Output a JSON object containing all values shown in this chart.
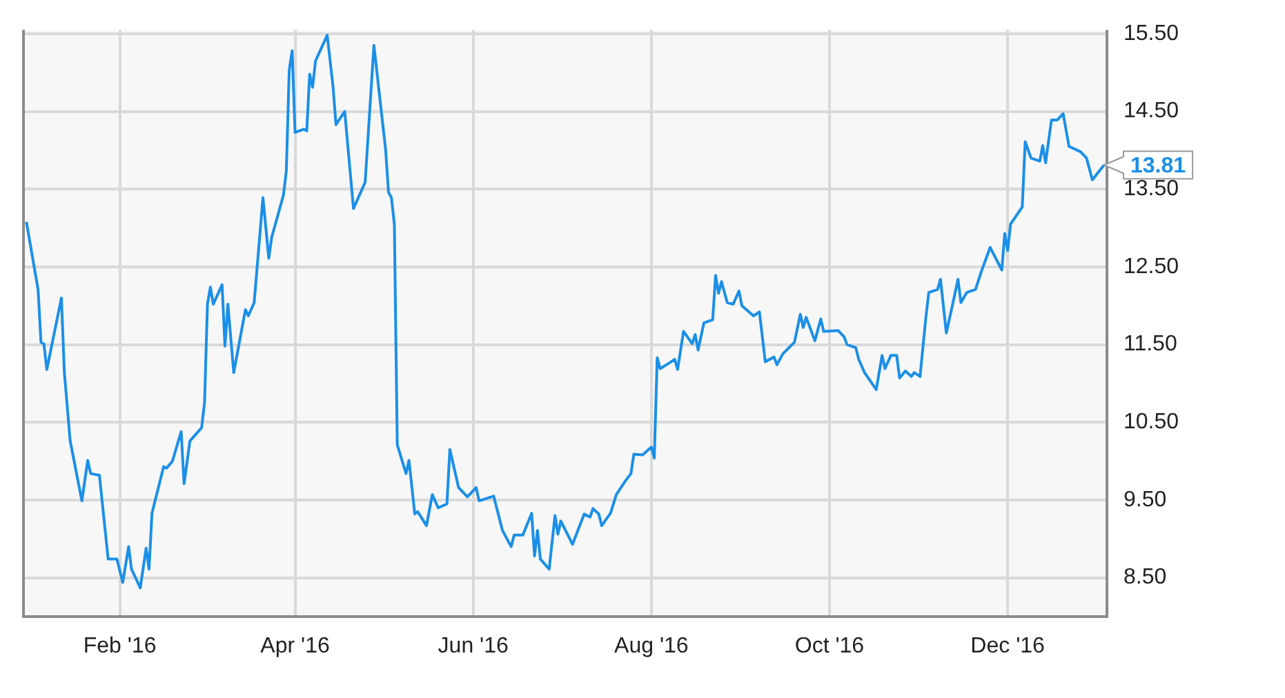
{
  "chart_data": {
    "type": "line",
    "x": [
      "2015-12-31",
      "2016-01-04",
      "2016-01-05",
      "2016-01-06",
      "2016-01-07",
      "2016-01-12",
      "2016-01-13",
      "2016-01-15",
      "2016-01-19",
      "2016-01-21",
      "2016-01-22",
      "2016-01-25",
      "2016-01-28",
      "2016-01-31",
      "2016-02-02",
      "2016-02-04",
      "2016-02-05",
      "2016-02-08",
      "2016-02-10",
      "2016-02-11",
      "2016-02-12",
      "2016-02-16",
      "2016-02-17",
      "2016-02-19",
      "2016-02-22",
      "2016-02-23",
      "2016-02-25",
      "2016-02-29",
      "2016-03-01",
      "2016-03-02",
      "2016-03-03",
      "2016-03-04",
      "2016-03-07",
      "2016-03-08",
      "2016-03-09",
      "2016-03-11",
      "2016-03-15",
      "2016-03-16",
      "2016-03-18",
      "2016-03-21",
      "2016-03-23",
      "2016-03-24",
      "2016-03-28",
      "2016-03-29",
      "2016-03-30",
      "2016-03-31",
      "2016-04-01",
      "2016-04-04",
      "2016-04-05",
      "2016-04-06",
      "2016-04-07",
      "2016-04-08",
      "2016-04-12",
      "2016-04-14",
      "2016-04-15",
      "2016-04-18",
      "2016-04-21",
      "2016-04-25",
      "2016-04-28",
      "2016-05-02",
      "2016-05-03",
      "2016-05-04",
      "2016-05-05",
      "2016-05-06",
      "2016-05-09",
      "2016-05-10",
      "2016-05-12",
      "2016-05-13",
      "2016-05-16",
      "2016-05-18",
      "2016-05-20",
      "2016-05-23",
      "2016-05-24",
      "2016-05-27",
      "2016-05-30",
      "2016-06-02",
      "2016-06-03",
      "2016-06-08",
      "2016-06-11",
      "2016-06-14",
      "2016-06-15",
      "2016-06-18",
      "2016-06-21",
      "2016-06-22",
      "2016-06-23",
      "2016-06-24",
      "2016-06-27",
      "2016-06-29",
      "2016-06-30",
      "2016-07-01",
      "2016-07-05",
      "2016-07-09",
      "2016-07-11",
      "2016-07-12",
      "2016-07-14",
      "2016-07-15",
      "2016-07-18",
      "2016-07-20",
      "2016-07-23",
      "2016-07-25",
      "2016-07-26",
      "2016-07-29",
      "2016-08-01",
      "2016-08-02",
      "2016-08-03",
      "2016-08-04",
      "2016-08-07",
      "2016-08-09",
      "2016-08-10",
      "2016-08-12",
      "2016-08-15",
      "2016-08-16",
      "2016-08-17",
      "2016-08-19",
      "2016-08-22",
      "2016-08-23",
      "2016-08-24",
      "2016-08-25",
      "2016-08-27",
      "2016-08-29",
      "2016-08-31",
      "2016-09-01",
      "2016-09-05",
      "2016-09-07",
      "2016-09-09",
      "2016-09-12",
      "2016-09-13",
      "2016-09-15",
      "2016-09-19",
      "2016-09-21",
      "2016-09-22",
      "2016-09-23",
      "2016-09-26",
      "2016-09-28",
      "2016-09-29",
      "2016-10-04",
      "2016-10-06",
      "2016-10-07",
      "2016-10-10",
      "2016-10-11",
      "2016-10-13",
      "2016-10-17",
      "2016-10-19",
      "2016-10-20",
      "2016-10-22",
      "2016-10-24",
      "2016-10-25",
      "2016-10-27",
      "2016-10-29",
      "2016-10-30",
      "2016-11-01",
      "2016-11-03",
      "2016-11-04",
      "2016-11-07",
      "2016-11-08",
      "2016-11-10",
      "2016-11-12",
      "2016-11-14",
      "2016-11-15",
      "2016-11-17",
      "2016-11-20",
      "2016-11-22",
      "2016-11-25",
      "2016-11-29",
      "2016-11-30",
      "2016-12-01",
      "2016-12-02",
      "2016-12-06",
      "2016-12-07",
      "2016-12-09",
      "2016-12-12",
      "2016-12-13",
      "2016-12-14",
      "2016-12-16",
      "2016-12-18",
      "2016-12-20",
      "2016-12-22",
      "2016-12-26",
      "2016-12-28",
      "2016-12-30",
      "2017-01-03"
    ],
    "series": [
      {
        "color": "#1a8fe8",
        "values": [
          13.08,
          12.21,
          11.53,
          11.51,
          11.18,
          12.1,
          11.14,
          10.26,
          9.49,
          10.01,
          9.84,
          9.82,
          8.74,
          8.74,
          8.44,
          8.9,
          8.61,
          8.37,
          8.88,
          8.61,
          9.33,
          9.93,
          9.91,
          10.0,
          10.38,
          9.71,
          10.26,
          10.43,
          10.75,
          12.02,
          12.24,
          12.02,
          12.27,
          11.48,
          12.02,
          11.14,
          11.95,
          11.87,
          12.04,
          13.39,
          12.61,
          12.88,
          13.42,
          13.73,
          15.03,
          15.28,
          14.23,
          14.27,
          14.25,
          14.98,
          14.81,
          15.15,
          15.48,
          14.82,
          14.33,
          14.5,
          13.25,
          13.59,
          15.35,
          14.01,
          13.46,
          13.39,
          13.05,
          10.21,
          9.84,
          10.01,
          9.32,
          9.35,
          9.17,
          9.57,
          9.4,
          9.45,
          10.15,
          9.66,
          9.54,
          9.66,
          9.49,
          9.55,
          9.11,
          8.9,
          9.05,
          9.05,
          9.33,
          8.78,
          9.11,
          8.74,
          8.61,
          9.3,
          9.06,
          9.23,
          8.93,
          9.32,
          9.28,
          9.39,
          9.32,
          9.17,
          9.33,
          9.57,
          9.74,
          9.84,
          10.09,
          10.08,
          10.18,
          10.04,
          11.33,
          11.19,
          11.26,
          11.31,
          11.18,
          11.67,
          11.51,
          11.63,
          11.43,
          11.78,
          11.82,
          12.39,
          12.16,
          12.31,
          12.04,
          12.02,
          12.19,
          12.0,
          11.87,
          11.92,
          11.28,
          11.34,
          11.24,
          11.38,
          11.53,
          11.89,
          11.72,
          11.85,
          11.55,
          11.83,
          11.67,
          11.68,
          11.6,
          11.5,
          11.46,
          11.31,
          11.14,
          10.92,
          11.36,
          11.19,
          11.36,
          11.36,
          11.07,
          11.16,
          11.09,
          11.14,
          11.09,
          11.85,
          12.17,
          12.21,
          12.34,
          11.65,
          11.99,
          12.34,
          12.04,
          12.17,
          12.21,
          12.44,
          12.75,
          12.46,
          12.93,
          12.71,
          13.05,
          13.27,
          14.11,
          13.9,
          13.86,
          14.06,
          13.84,
          14.39,
          14.39,
          14.47,
          14.05,
          13.98,
          13.9,
          13.62,
          13.81
        ]
      }
    ],
    "xlim": [
      "2015-12-30",
      "2017-01-04"
    ],
    "xticks": [
      {
        "value": "2016-02-01",
        "label": "Feb '16"
      },
      {
        "value": "2016-04-01",
        "label": "Apr '16"
      },
      {
        "value": "2016-06-01",
        "label": "Jun '16"
      },
      {
        "value": "2016-08-01",
        "label": "Aug '16"
      },
      {
        "value": "2016-10-01",
        "label": "Oct '16"
      },
      {
        "value": "2016-12-01",
        "label": "Dec '16"
      }
    ],
    "ylim": [
      8.0,
      15.55
    ],
    "yticks": [
      {
        "value": 8.5,
        "label": "8.50"
      },
      {
        "value": 9.5,
        "label": "9.50"
      },
      {
        "value": 10.5,
        "label": "10.50"
      },
      {
        "value": 11.5,
        "label": "11.50"
      },
      {
        "value": 12.5,
        "label": "12.50"
      },
      {
        "value": 13.5,
        "label": "13.50"
      },
      {
        "value": 14.5,
        "label": "14.50"
      },
      {
        "value": 15.5,
        "label": "15.50"
      }
    ],
    "annotations": [
      {
        "text": "13.81",
        "x": "2017-01-03",
        "y": 13.81
      }
    ],
    "grid": true,
    "legend": false,
    "marker": "none",
    "line_style": "solid"
  }
}
